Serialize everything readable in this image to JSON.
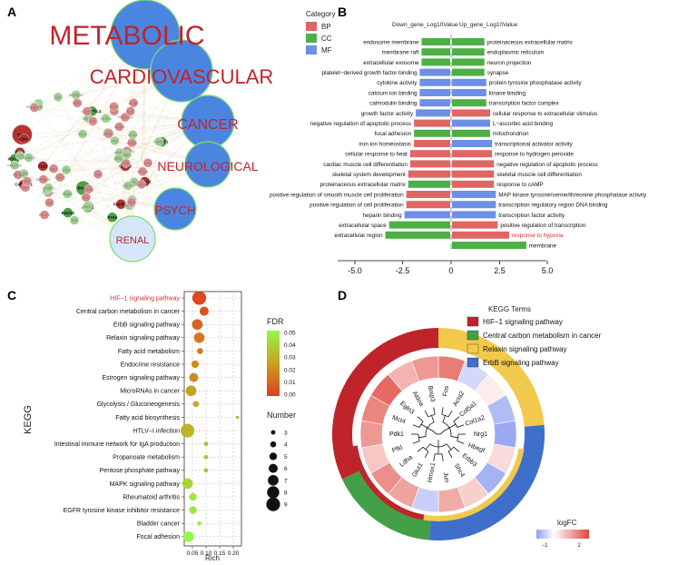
{
  "panel_labels": [
    "A",
    "B",
    "C",
    "D"
  ],
  "colors": {
    "BP": "#e06666",
    "CC": "#4cb045",
    "MF": "#6d8fe6",
    "net_red": "#cc3a3a",
    "net_green": "#86c77a",
    "hub_blue": "#4a86e0",
    "hub_border": "#7fdc6b",
    "hub_light": "#d6e6fa",
    "fdr_low": "#e03d20",
    "fdr_mid": "#c9a020",
    "fdr_high": "#94f84a",
    "hif": "#c0242b",
    "carbon": "#43a047",
    "relaxin": "#f2c94c",
    "erbb": "#3d6fcb",
    "logfc_low": "#8f9ff0",
    "logfc_high": "#e0443c"
  },
  "panelA": {
    "hubs": [
      "METABOLIC",
      "CARDIOVASCULAR",
      "CANCER",
      "NEUROLOGICAL",
      "PSYCH",
      "RENAL"
    ],
    "genes_bold": [
      "PDK1",
      "BNIP3",
      "EDN2",
      "ACTB",
      "CABLES1",
      "ANGPTL4",
      "KCNJ2",
      "ATP5B",
      "FGFBP1",
      "WSCD2",
      "CDH20",
      "CRCT1",
      "ELK3",
      "PTK6",
      "LDHA",
      "EGLN3"
    ],
    "genes_faint": [
      "ADAMTS4",
      "ALDOA",
      "CA9",
      "SLC2A1",
      "PFKFB3",
      "HK2",
      "VEGFA",
      "ENO1",
      "PGK1",
      "LOX",
      "P4HA1",
      "NDRG1",
      "MXI1",
      "DDIT4",
      "ERO1A",
      "FOS",
      "JUN",
      "EGR1",
      "SOX4",
      "MMP2",
      "COL5A1",
      "LAMB3",
      "ITGB4",
      "SERPINE1",
      "KLF4",
      "ADM",
      "ANKRD37",
      "BHLHE40",
      "PLOD2",
      "STC2",
      "PPFIA4",
      "INSIG2",
      "TMEM45A",
      "FAM162A",
      "GPI",
      "TPI1",
      "PFKP",
      "MIF",
      "ANG",
      "HILPDA",
      "RORA",
      "NRN1",
      "TGFBI",
      "ZNF395",
      "KDM3A",
      "ADAM19",
      "CDC42",
      "RAB20",
      "PIM1",
      "GBE1",
      "VLDLR",
      "CXCR4",
      "IRS2",
      "STC1",
      "WSB1",
      "NOS2",
      "THBS1",
      "IGFBP3",
      "TFRC"
    ],
    "legend_title": "Category",
    "legend_items": [
      "BP",
      "CC",
      "MF"
    ]
  },
  "chart_data": [
    {
      "panel": "B",
      "type": "bar",
      "orientation": "horizontal",
      "headers": [
        "Down_gene_Log10Value",
        "Up_gene_Log10Value"
      ],
      "xlim": [
        -5,
        5
      ],
      "xticks": [
        "-5.0",
        "-2.5",
        "0",
        "2.5",
        "5.0"
      ],
      "down": [
        {
          "term": "endosome membrane",
          "cat": "CC",
          "value": -1.5
        },
        {
          "term": "membrane raft",
          "cat": "CC",
          "value": -1.5
        },
        {
          "term": "extracellular exosome",
          "cat": "CC",
          "value": -1.5
        },
        {
          "term": "platelet−derived growth factor binding",
          "cat": "MF",
          "value": -1.6
        },
        {
          "term": "cytokine activity",
          "cat": "MF",
          "value": -1.6
        },
        {
          "term": "calcium ion binding",
          "cat": "MF",
          "value": -1.6
        },
        {
          "term": "calmodulin binding",
          "cat": "MF",
          "value": -1.6
        },
        {
          "term": "growth factor activity",
          "cat": "MF",
          "value": -1.8
        },
        {
          "term": "negative regulation of apoptotic process",
          "cat": "BP",
          "value": -1.9
        },
        {
          "term": "focal adhesion",
          "cat": "CC",
          "value": -1.9
        },
        {
          "term": "iron ion homeostasis",
          "cat": "BP",
          "value": -1.9
        },
        {
          "term": "cellular response to heat",
          "cat": "BP",
          "value": -2.1
        },
        {
          "term": "cardiac muscle cell differentiation",
          "cat": "BP",
          "value": -2.1
        },
        {
          "term": "skeletal system development",
          "cat": "BP",
          "value": -2.2
        },
        {
          "term": "proteinaceous extracellular matrix",
          "cat": "CC",
          "value": -2.2
        },
        {
          "term": "positive regulation of smooth muscle cell proliferation",
          "cat": "BP",
          "value": -2.3
        },
        {
          "term": "positive regulation of cell proliferation",
          "cat": "BP",
          "value": -2.3
        },
        {
          "term": "heparin binding",
          "cat": "MF",
          "value": -2.4
        },
        {
          "term": "extracellular space",
          "cat": "CC",
          "value": -3.2
        },
        {
          "term": "extracellular region",
          "cat": "CC",
          "value": -3.4
        }
      ],
      "up": [
        {
          "term": "proteinaceous extracellular matrix",
          "cat": "CC",
          "value": 1.7
        },
        {
          "term": "endoplasmic reticulum",
          "cat": "CC",
          "value": 1.7
        },
        {
          "term": "neuron projection",
          "cat": "CC",
          "value": 1.7
        },
        {
          "term": "synapse",
          "cat": "CC",
          "value": 1.7
        },
        {
          "term": "protein tyrosine phosphatase activity",
          "cat": "MF",
          "value": 1.8
        },
        {
          "term": "kinase binding",
          "cat": "MF",
          "value": 1.8
        },
        {
          "term": "transcription factor complex",
          "cat": "CC",
          "value": 1.8
        },
        {
          "term": "cellular response to extracellular stimulus",
          "cat": "BP",
          "value": 2.0
        },
        {
          "term": "L−ascorbic acid binding",
          "cat": "MF",
          "value": 2.0
        },
        {
          "term": "mitochondrion",
          "cat": "CC",
          "value": 2.0
        },
        {
          "term": "transcriptional activator activity",
          "cat": "MF",
          "value": 2.1
        },
        {
          "term": "response to hydrogen peroxide",
          "cat": "BP",
          "value": 2.1
        },
        {
          "term": "negative regulation of apoptotic process",
          "cat": "BP",
          "value": 2.2
        },
        {
          "term": "skeletal muscle cell differentiation",
          "cat": "BP",
          "value": 2.2
        },
        {
          "term": "response to cAMP",
          "cat": "BP",
          "value": 2.2
        },
        {
          "term": "MAP kinase tyrosine/serine/threonine phosphatase activity",
          "cat": "MF",
          "value": 2.3
        },
        {
          "term": "transcription regulatory region DNA binding",
          "cat": "MF",
          "value": 2.3
        },
        {
          "term": "transcription factor activity",
          "cat": "MF",
          "value": 2.3
        },
        {
          "term": "positive regulation of transcription",
          "cat": "BP",
          "value": 2.4
        },
        {
          "term": "response to hypoxia",
          "cat": "BP",
          "value": 3.0
        },
        {
          "term": "membrane",
          "cat": "CC",
          "value": 3.9
        }
      ],
      "highlight": "response to hypoxia"
    },
    {
      "panel": "C",
      "type": "scatter",
      "ylabel": "KEGG",
      "xlabel": "Rich",
      "xlim": [
        0.02,
        0.23
      ],
      "xticks": [
        0.05,
        0.1,
        0.15,
        0.2
      ],
      "xtick_labels": [
        "0.05",
        "0.10",
        "0.15",
        "0.20"
      ],
      "highlight": "HIF−1 signaling pathway",
      "points": [
        {
          "pathway": "HIF−1 signaling pathway",
          "rich": 0.075,
          "fdr": 0.002,
          "number": 9
        },
        {
          "pathway": "Central carbon metabolism in cancer",
          "rich": 0.093,
          "fdr": 0.005,
          "number": 6
        },
        {
          "pathway": "ErbB signaling pathway",
          "rich": 0.068,
          "fdr": 0.01,
          "number": 7
        },
        {
          "pathway": "Relaxin signaling pathway",
          "rich": 0.075,
          "fdr": 0.015,
          "number": 7
        },
        {
          "pathway": "Fatty acid metabolism",
          "rich": 0.078,
          "fdr": 0.015,
          "number": 4
        },
        {
          "pathway": "Endocrine resistance",
          "rich": 0.06,
          "fdr": 0.02,
          "number": 5
        },
        {
          "pathway": "Estrogen signaling pathway",
          "rich": 0.055,
          "fdr": 0.02,
          "number": 6
        },
        {
          "pathway": "MicroRNAs in cancer",
          "rich": 0.045,
          "fdr": 0.025,
          "number": 7
        },
        {
          "pathway": "Glycolysis / Gluconeogenesis",
          "rich": 0.063,
          "fdr": 0.028,
          "number": 4
        },
        {
          "pathway": "Fatty acid biosynthesis",
          "rich": 0.215,
          "fdr": 0.03,
          "number": 2
        },
        {
          "pathway": "HTLV−I infection",
          "rich": 0.032,
          "fdr": 0.03,
          "number": 9
        },
        {
          "pathway": "Intestinal immune network for IgA production",
          "rich": 0.1,
          "fdr": 0.035,
          "number": 3
        },
        {
          "pathway": "Propanoate metabolism",
          "rich": 0.1,
          "fdr": 0.035,
          "number": 3
        },
        {
          "pathway": "Pentose phosphate pathway",
          "rich": 0.1,
          "fdr": 0.035,
          "number": 3
        },
        {
          "pathway": "MAPK signaling pathway",
          "rich": 0.032,
          "fdr": 0.04,
          "number": 7
        },
        {
          "pathway": "Rheumatoid arthritis",
          "rich": 0.052,
          "fdr": 0.045,
          "number": 5
        },
        {
          "pathway": "EGFR tyrosine kinase inhibitor resistance",
          "rich": 0.052,
          "fdr": 0.045,
          "number": 5
        },
        {
          "pathway": "Bladder cancer",
          "rich": 0.075,
          "fdr": 0.048,
          "number": 3
        },
        {
          "pathway": "Focal adhesion",
          "rich": 0.035,
          "fdr": 0.05,
          "number": 7
        }
      ],
      "fdr_legend": {
        "title": "FDR",
        "ticks": [
          "0.05",
          "0.04",
          "0.03",
          "0.02",
          "0.01",
          "0.00"
        ]
      },
      "size_legend": {
        "title": "Number",
        "values": [
          3,
          4,
          5,
          6,
          7,
          8,
          9
        ]
      }
    },
    {
      "panel": "D",
      "type": "heatmap",
      "layout": "circular",
      "legend_title": "KEGG Terms",
      "terms": [
        "HIF−1 signaling pathway",
        "Central carbon metabolism in cancer",
        "Relaxin signaling pathway",
        "ErbB signaling pathway"
      ],
      "genes": [
        {
          "gene": "Fos",
          "logFC": 1.4
        },
        {
          "gene": "Acta2",
          "logFC": -0.4
        },
        {
          "gene": "Col5a1",
          "logFC": 0.2
        },
        {
          "gene": "Col1a2",
          "logFC": -0.7
        },
        {
          "gene": "Nrg1",
          "logFC": -0.9
        },
        {
          "gene": "Hbegf",
          "logFC": 0.4
        },
        {
          "gene": "Erbb3",
          "logFC": -0.8
        },
        {
          "gene": "Shc4",
          "logFC": 0.5
        },
        {
          "gene": "Jun",
          "logFC": 0.9
        },
        {
          "gene": "Hmox1",
          "logFC": -0.5
        },
        {
          "gene": "Glut1",
          "logFC": 1.0
        },
        {
          "gene": "Ldha",
          "logFC": 1.2
        },
        {
          "gene": "Pfkl",
          "logFC": 0.6
        },
        {
          "gene": "Pdk1",
          "logFC": 1.1
        },
        {
          "gene": "Mct4",
          "logFC": 1.3
        },
        {
          "gene": "Egln3",
          "logFC": 1.6
        },
        {
          "gene": "Aldoa",
          "logFC": 0.8
        },
        {
          "gene": "Bnip3",
          "logFC": 1.1
        }
      ],
      "logfc_legend": {
        "title": "logFC",
        "ticks": [
          "−1",
          "2"
        ],
        "range": [
          -1,
          2
        ]
      }
    }
  ]
}
